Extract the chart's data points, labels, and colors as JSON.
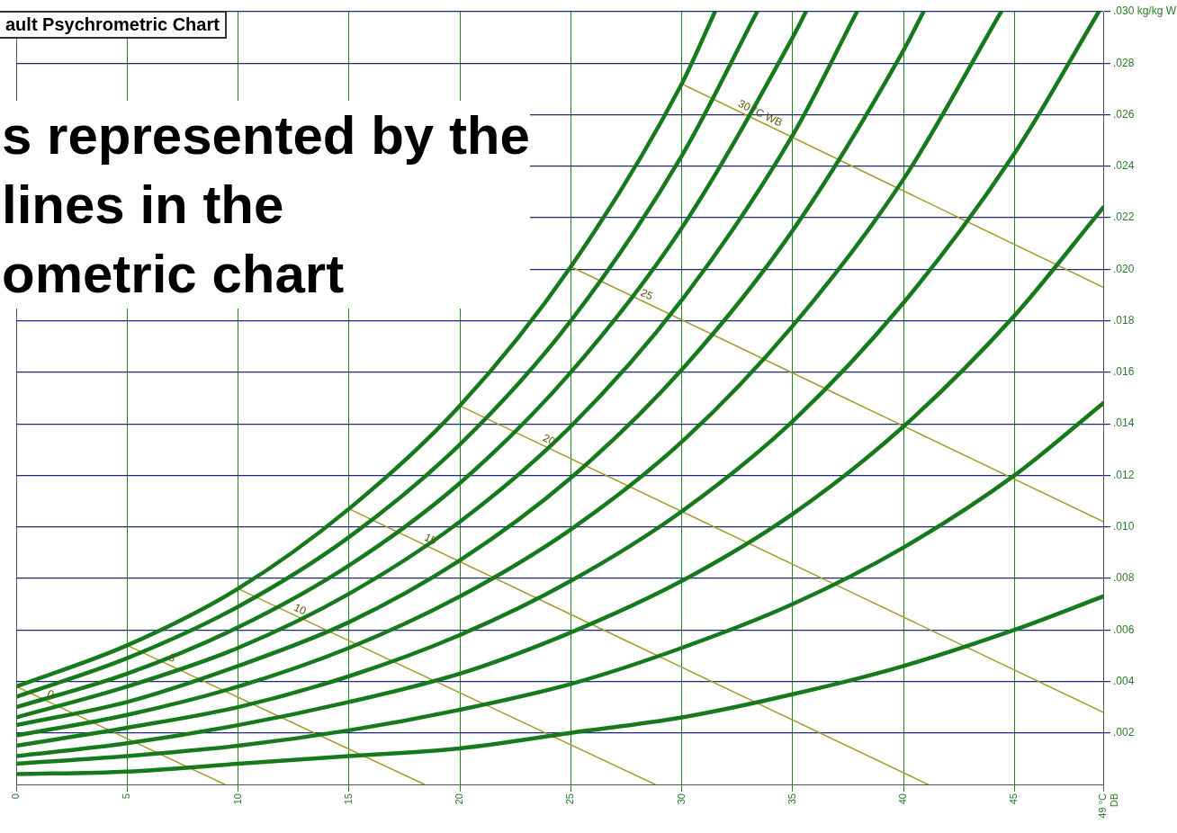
{
  "chart_data": {
    "type": "line",
    "title": "ault Psychrometric Chart",
    "subtitle": "s represented by the\nlines in the\nometric chart",
    "xlim": [
      0,
      49
    ],
    "xticks": [
      0,
      5,
      10,
      15,
      20,
      25,
      30,
      35,
      40,
      45,
      {
        "value": 49,
        "label": "49 °C\nDB"
      }
    ],
    "ylim": [
      0,
      0.03
    ],
    "yticks": [
      {
        "value": 0.002,
        "label": ".002"
      },
      {
        "value": 0.004,
        "label": ".004"
      },
      {
        "value": 0.006,
        "label": ".006"
      },
      {
        "value": 0.008,
        "label": ".008"
      },
      {
        "value": 0.01,
        "label": ".010"
      },
      {
        "value": 0.012,
        "label": ".012"
      },
      {
        "value": 0.014,
        "label": ".014"
      },
      {
        "value": 0.016,
        "label": ".016"
      },
      {
        "value": 0.018,
        "label": ".018"
      },
      {
        "value": 0.02,
        "label": ".020"
      },
      {
        "value": 0.022,
        "label": ".022"
      },
      {
        "value": 0.024,
        "label": ".024"
      },
      {
        "value": 0.026,
        "label": ".026"
      },
      {
        "value": 0.028,
        "label": ".028"
      },
      {
        "value": 0.03,
        "label": ".030 kg/kg W"
      }
    ],
    "grid": true,
    "legend": false,
    "marker": "none",
    "line_style": "solid",
    "series": [
      {
        "color": "#167a1c",
        "x": [
          0,
          5,
          10,
          15,
          20,
          25,
          30,
          35,
          40,
          45,
          49
        ],
        "values": [
          0.0004,
          0.0005,
          0.0008,
          0.0011,
          0.0014,
          0.002,
          0.0026,
          0.0035,
          0.0046,
          0.006,
          0.0073
        ]
      },
      {
        "color": "#167a1c",
        "x": [
          0,
          5,
          10,
          15,
          20,
          25,
          30,
          35,
          40,
          45,
          49
        ],
        "values": [
          0.0008,
          0.0011,
          0.0015,
          0.0021,
          0.0029,
          0.0039,
          0.0053,
          0.007,
          0.0092,
          0.012,
          0.0148
        ]
      },
      {
        "color": "#167a1c",
        "x": [
          0,
          5,
          10,
          15,
          20,
          25,
          30,
          35,
          40,
          45,
          49
        ],
        "values": [
          0.0011,
          0.0016,
          0.0023,
          0.0032,
          0.0043,
          0.0059,
          0.0079,
          0.0105,
          0.0139,
          0.0182,
          0.0224
        ]
      },
      {
        "color": "#167a1c",
        "x": [
          0,
          5,
          10,
          15,
          20,
          25,
          30,
          35,
          40,
          45,
          48.8
        ],
        "values": [
          0.0015,
          0.0022,
          0.003,
          0.0042,
          0.0058,
          0.0079,
          0.0106,
          0.0141,
          0.0187,
          0.0245,
          0.03
        ]
      },
      {
        "color": "#167a1c",
        "x": [
          0,
          5,
          10,
          15,
          20,
          25,
          30,
          35,
          40,
          44.4
        ],
        "values": [
          0.0019,
          0.0027,
          0.0038,
          0.0053,
          0.0073,
          0.0099,
          0.0133,
          0.0178,
          0.0235,
          0.03
        ]
      },
      {
        "color": "#167a1c",
        "x": [
          0,
          5,
          10,
          15,
          20,
          25,
          30,
          35,
          40,
          40.9
        ],
        "values": [
          0.0023,
          0.0032,
          0.0046,
          0.0063,
          0.0087,
          0.0119,
          0.0161,
          0.0215,
          0.0285,
          0.03
        ]
      },
      {
        "color": "#167a1c",
        "x": [
          0,
          5,
          10,
          15,
          20,
          25,
          30,
          35,
          37.9
        ],
        "values": [
          0.0026,
          0.0038,
          0.0053,
          0.0074,
          0.0102,
          0.0139,
          0.0188,
          0.0252,
          0.03
        ]
      },
      {
        "color": "#167a1c",
        "x": [
          0,
          5,
          10,
          15,
          20,
          25,
          30,
          35,
          35.6
        ],
        "values": [
          0.003,
          0.0043,
          0.0061,
          0.0085,
          0.0117,
          0.016,
          0.0216,
          0.029,
          0.03
        ]
      },
      {
        "color": "#167a1c",
        "x": [
          0,
          5,
          10,
          15,
          20,
          25,
          30,
          33.4
        ],
        "values": [
          0.0034,
          0.0049,
          0.0069,
          0.0096,
          0.0132,
          0.018,
          0.0244,
          0.03
        ]
      },
      {
        "color": "#167a1c",
        "x": [
          0,
          5,
          10,
          15,
          20,
          25,
          30,
          31.5
        ],
        "values": [
          0.0038,
          0.0054,
          0.0076,
          0.0107,
          0.0147,
          0.0201,
          0.0272,
          0.03
        ]
      },
      {
        "name": "0",
        "color": "#a89a2a",
        "x": [
          0,
          9.4
        ],
        "values": [
          0.0038,
          0
        ]
      },
      {
        "name": "5",
        "color": "#a89a2a",
        "x": [
          5,
          18.4
        ],
        "values": [
          0.0054,
          0
        ]
      },
      {
        "name": "10",
        "color": "#a89a2a",
        "x": [
          10,
          28.8
        ],
        "values": [
          0.0076,
          0
        ]
      },
      {
        "name": "15",
        "color": "#a89a2a",
        "x": [
          15,
          41.1
        ],
        "values": [
          0.0107,
          0
        ]
      },
      {
        "name": "20",
        "color": "#a89a2a",
        "x": [
          20,
          49
        ],
        "values": [
          0.0147,
          0.0028
        ]
      },
      {
        "name": "25",
        "color": "#a89a2a",
        "x": [
          25,
          49
        ],
        "values": [
          0.0201,
          0.0102
        ]
      },
      {
        "name": "30 °C WB",
        "color": "#a89a2a",
        "x": [
          30,
          49
        ],
        "values": [
          0.0272,
          0.0193
        ]
      }
    ]
  }
}
